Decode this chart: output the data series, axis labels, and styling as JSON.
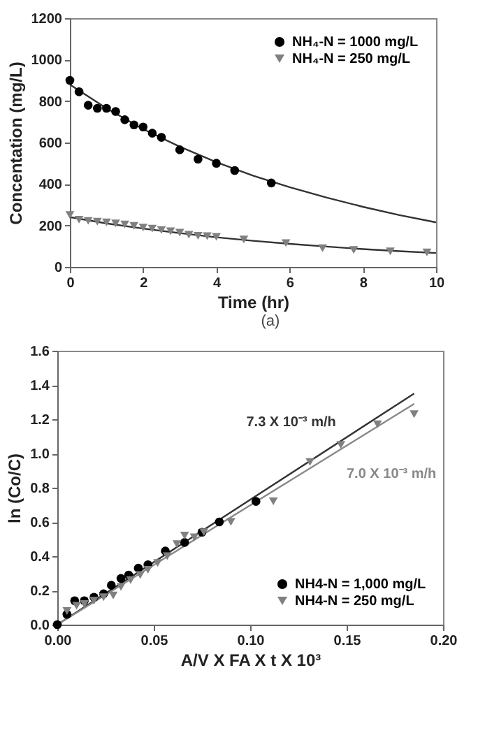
{
  "chart_data": [
    {
      "type": "scatter",
      "xlabel": "Time (hr)",
      "ylabel": "Concentation (mg/L)",
      "xlim": [
        0,
        10
      ],
      "ylim": [
        0,
        1200
      ],
      "xticks": [
        0,
        2,
        4,
        6,
        8,
        10
      ],
      "yticks": [
        0,
        200,
        400,
        600,
        800,
        1000,
        1200
      ],
      "legend": "top right",
      "annotations": [
        "(a)"
      ],
      "series": [
        {
          "type": "line",
          "color": "#333333",
          "marker": "none",
          "x": [
            0,
            1,
            2,
            3,
            4,
            5,
            6,
            7,
            8,
            9,
            10
          ],
          "values": [
            880,
            765,
            665,
            580,
            505,
            440,
            385,
            335,
            290,
            250,
            215
          ]
        },
        {
          "type": "line",
          "color": "#333333",
          "marker": "none",
          "x": [
            0,
            1,
            2,
            3,
            4,
            5,
            6,
            7,
            8,
            9,
            10
          ],
          "values": [
            240,
            210,
            185,
            163,
            143,
            126,
            111,
            98,
            86,
            76,
            67
          ]
        },
        {
          "type": "scatter",
          "name": "NH₄-N = 1000 mg/L",
          "color": "#000000",
          "marker": "circle",
          "x": [
            0,
            0.25,
            0.5,
            0.75,
            1,
            1.25,
            1.5,
            1.75,
            2,
            2.25,
            2.5,
            3,
            3.5,
            4,
            4.5,
            5.5
          ],
          "values": [
            900,
            845,
            780,
            765,
            765,
            750,
            710,
            685,
            675,
            645,
            625,
            565,
            520,
            500,
            465,
            405
          ]
        },
        {
          "type": "scatter",
          "name": "NH₄-N = 250 mg/L",
          "color": "#808080",
          "marker": "triangle",
          "x": [
            0,
            0.25,
            0.5,
            0.75,
            1,
            1.25,
            1.5,
            1.75,
            2,
            2.25,
            2.5,
            2.75,
            3,
            3.25,
            3.5,
            3.75,
            4,
            4.75,
            5.9,
            6.9,
            7.75,
            8.75,
            9.75
          ],
          "values": [
            250,
            228,
            222,
            218,
            215,
            210,
            205,
            198,
            190,
            185,
            178,
            172,
            165,
            155,
            150,
            148,
            145,
            132,
            115,
            90,
            82,
            75,
            70
          ]
        }
      ]
    },
    {
      "type": "scatter",
      "xlabel": "A/V X FA X t X 10³",
      "ylabel": "ln (Co/C)",
      "xlim": [
        0,
        0.2
      ],
      "ylim": [
        0,
        1.6
      ],
      "xticks": [
        {
          "value": 0,
          "label": "0.00"
        },
        0.05,
        {
          "value": 0.1,
          "label": "0.10"
        },
        0.15,
        {
          "value": 0.2,
          "label": "0.20"
        }
      ],
      "yticks": [
        {
          "value": 0,
          "label": "0.0"
        },
        0.2,
        0.4,
        0.6,
        0.8,
        {
          "value": 1,
          "label": "1.0"
        },
        1.2,
        1.4,
        1.6
      ],
      "legend": "bottom right",
      "annotations": [
        "7.3 X 10⁻³ m/h",
        "7.0 X 10⁻³ m/h"
      ],
      "series": [
        {
          "type": "line",
          "color": "#333333",
          "marker": "none",
          "x": [
            0,
            0.185
          ],
          "values": [
            0,
            1.35
          ]
        },
        {
          "type": "line",
          "color": "#888888",
          "marker": "none",
          "x": [
            0,
            0.185
          ],
          "values": [
            0,
            1.29
          ]
        },
        {
          "type": "scatter",
          "name": "NH4-N = 1,000 mg/L",
          "color": "#000000",
          "marker": "circle",
          "x": [
            0,
            0.005,
            0.009,
            0.014,
            0.019,
            0.024,
            0.028,
            0.033,
            0.037,
            0.042,
            0.047,
            0.056,
            0.066,
            0.075,
            0.084,
            0.103
          ],
          "values": [
            0,
            0.06,
            0.14,
            0.14,
            0.16,
            0.18,
            0.23,
            0.27,
            0.29,
            0.33,
            0.35,
            0.43,
            0.48,
            0.54,
            0.6,
            0.72
          ]
        },
        {
          "type": "scatter",
          "name": "NH4-N = 250 mg/L",
          "color": "#808080",
          "marker": "triangle",
          "x": [
            0.005,
            0.01,
            0.014,
            0.019,
            0.024,
            0.029,
            0.033,
            0.038,
            0.043,
            0.047,
            0.052,
            0.057,
            0.062,
            0.066,
            0.071,
            0.076,
            0.09,
            0.112,
            0.131,
            0.147,
            0.166,
            0.185
          ],
          "values": [
            0.08,
            0.11,
            0.12,
            0.14,
            0.16,
            0.17,
            0.22,
            0.26,
            0.29,
            0.32,
            0.36,
            0.4,
            0.47,
            0.52,
            0.51,
            0.54,
            0.6,
            0.72,
            0.95,
            1.05,
            1.17,
            1.23
          ]
        }
      ]
    }
  ]
}
